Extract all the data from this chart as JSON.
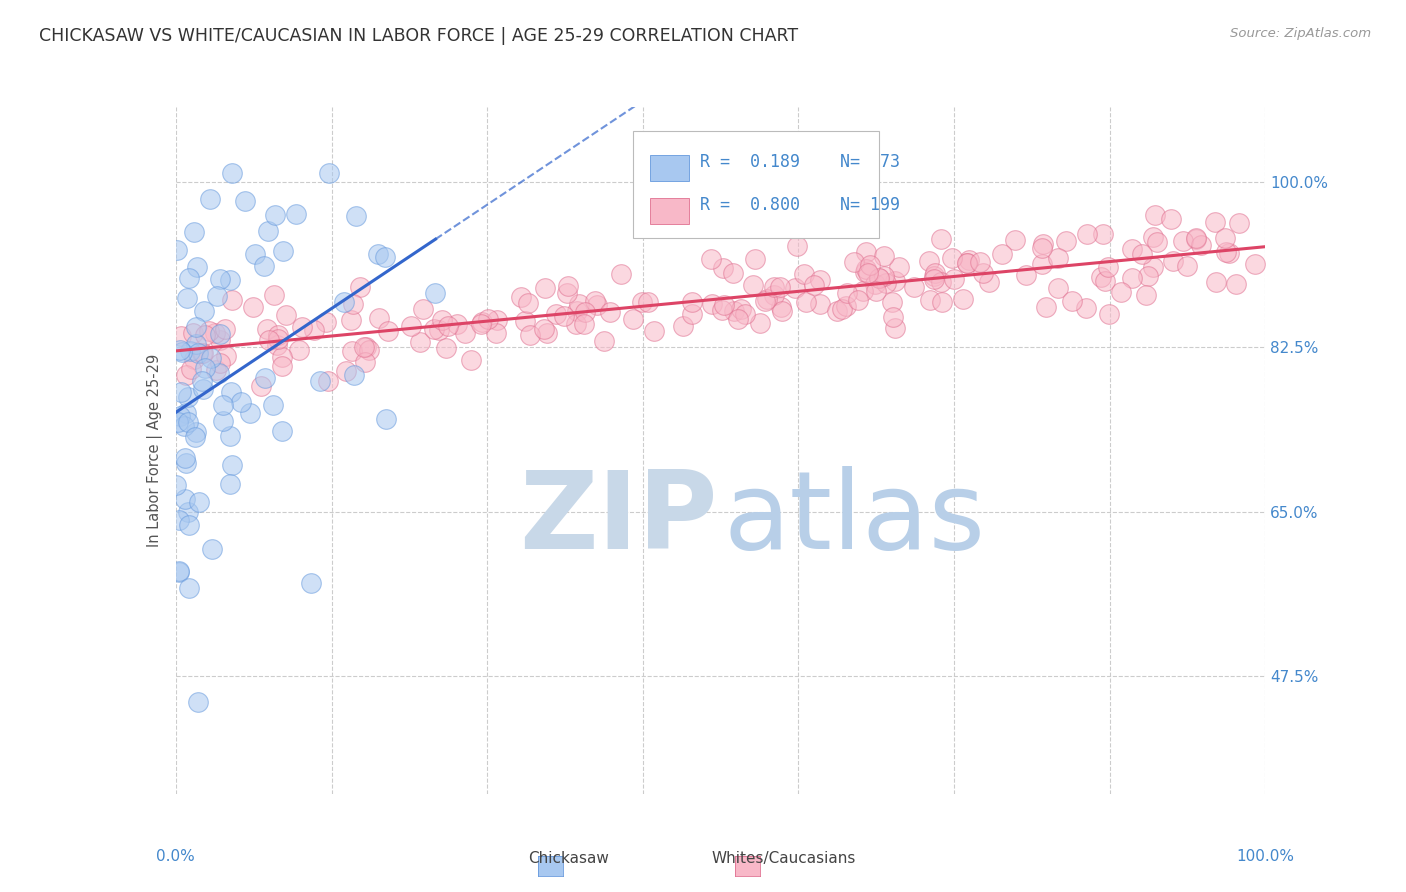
{
  "title": "CHICKASAW VS WHITE/CAUCASIAN IN LABOR FORCE | AGE 25-29 CORRELATION CHART",
  "source": "Source: ZipAtlas.com",
  "ylabel": "In Labor Force | Age 25-29",
  "xlim": [
    0.0,
    1.0
  ],
  "ylim": [
    0.35,
    1.08
  ],
  "yticks": [
    0.475,
    0.65,
    0.825,
    1.0
  ],
  "ytick_labels": [
    "47.5%",
    "65.0%",
    "82.5%",
    "100.0%"
  ],
  "xticks": [
    0.0,
    0.143,
    0.286,
    0.429,
    0.571,
    0.714,
    0.857,
    1.0
  ],
  "chickasaw_R": 0.189,
  "chickasaw_N": 73,
  "white_R": 0.8,
  "white_N": 199,
  "chickasaw_color": "#a8c8f0",
  "chickasaw_edge": "#6699dd",
  "white_color": "#f8b8c8",
  "white_edge": "#e07090",
  "chickasaw_line_color": "#3366cc",
  "white_line_color": "#dd4466",
  "watermark_zip_color": "#c8d8e8",
  "watermark_atlas_color": "#b8cfe8",
  "legend_label_chickasaw": "Chickasaw",
  "legend_label_white": "Whites/Caucasians",
  "title_color": "#333333",
  "axis_color": "#4488cc",
  "seed": 42,
  "background_color": "#ffffff",
  "grid_color": "#cccccc"
}
